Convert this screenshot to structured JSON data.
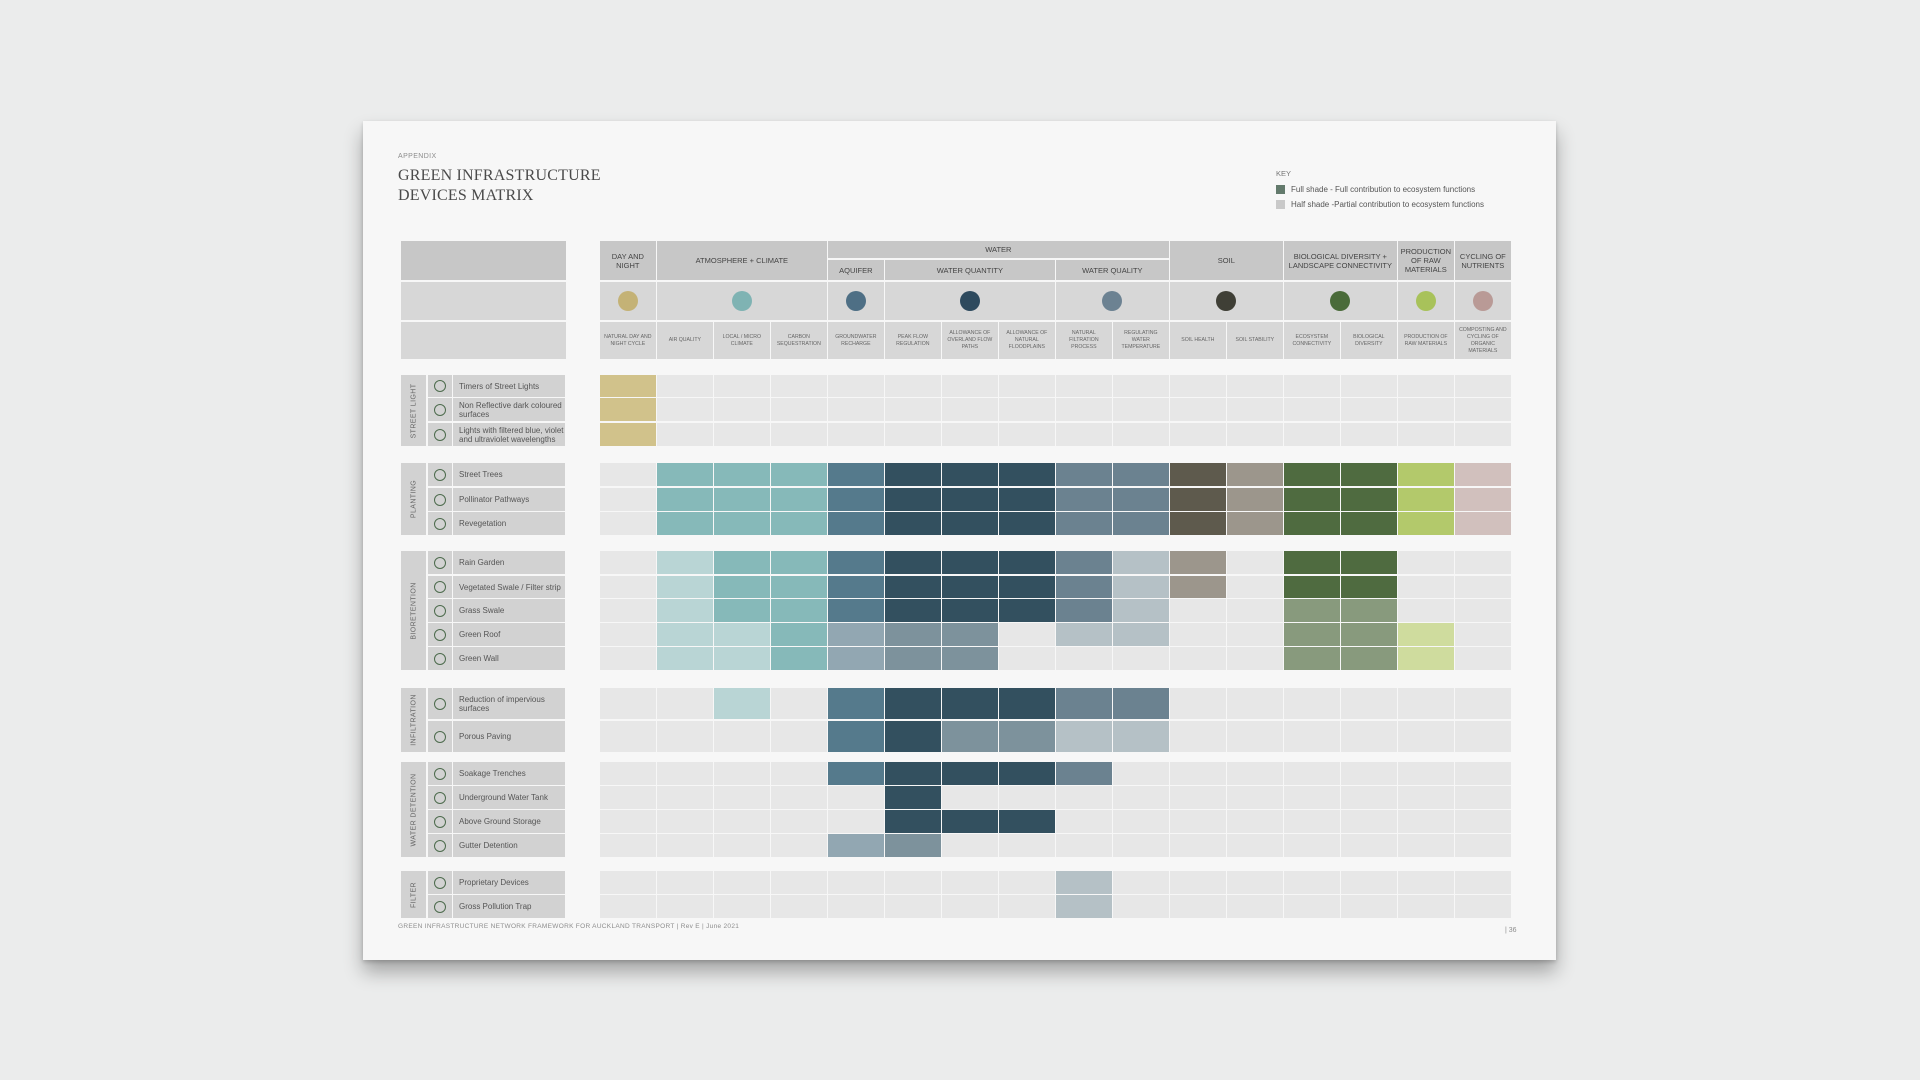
{
  "header": {
    "appendix": "APPENDIX",
    "title_line1": "GREEN INFRASTRUCTURE",
    "title_line2": "DEVICES  MATRIX"
  },
  "key": {
    "title": "KEY",
    "full_label": "Full shade - Full contribution to ecosystem functions",
    "half_label": "Half shade -Partial contribution to ecosystem functions",
    "full_color": "#637a6c",
    "half_color": "#c9c9c9"
  },
  "footer": {
    "text": "GREEN INFRASTRUCTURE NETWORK FRAMEWORK FOR AUCKLAND TRANSPORT  |  Rev E  |  June 2021",
    "page": "| 36"
  },
  "columns": {
    "groups": [
      {
        "label": "DAY AND NIGHT",
        "span": [
          0,
          0
        ],
        "icon": "sun-moon-icon",
        "icon_color": "#c4b276"
      },
      {
        "label": "ATMOSPHERE + CLIMATE",
        "span": [
          1,
          3
        ],
        "icon": "cloud-icon",
        "icon_color": "#7fb3b3"
      },
      {
        "label": "WATER",
        "span": [
          4,
          9
        ]
      },
      {
        "label": "SOIL",
        "span": [
          10,
          11
        ],
        "icon": "soil-icon",
        "icon_color": "#3f3f36"
      },
      {
        "label": "BIOLOGICAL DIVERSITY + LANDSCAPE CONNECTIVITY",
        "span": [
          12,
          13
        ],
        "icon": "tree-icon",
        "icon_color": "#4a6b3a"
      },
      {
        "label": "PRODUCTION OF RAW MATERIALS",
        "span": [
          14,
          14
        ],
        "icon": "leaf-icon",
        "icon_color": "#a8c25a"
      },
      {
        "label": "CYCLING OF NUTRIENTS",
        "span": [
          15,
          15
        ],
        "icon": "nutrient-icon",
        "icon_color": "#b99a96"
      }
    ],
    "water_subgroups": [
      {
        "label": "AQUIFER",
        "span": [
          4,
          4
        ],
        "icon": "aquifer-icon",
        "icon_color": "#4e6f85"
      },
      {
        "label": "WATER QUANTITY",
        "span": [
          5,
          7
        ],
        "icon": "drops-icon",
        "icon_color": "#2e4a5e"
      },
      {
        "label": "WATER QUALITY",
        "span": [
          8,
          9
        ],
        "icon": "drop-icon",
        "icon_color": "#6c8292"
      }
    ],
    "sub": [
      "NATURAL DAY AND NIGHT CYCLE",
      "AIR QUALITY",
      "LOCAL / MICRO CLIMATE",
      "CARBON SEQUESTRATION",
      "GROUNDWATER RECHARGE",
      "PEAK FLOW REGULATION",
      "ALLOWANCE OF OVERLAND FLOW PATHS",
      "ALLOWANCE OF NATURAL FLOODPLAINS",
      "NATURAL FILTRATION PROCESS",
      "REGULATING WATER TEMPERATURE",
      "SOIL HEALTH",
      "SOIL STABILITY",
      "ECOSYSTEM CONNECTIVITY",
      "BIOLOGICAL DIVERSITY",
      "PRODUCTION OF RAW MATERIALS",
      "COMPOSTING AND CYCLING OF ORGANIC MATERIALS"
    ]
  },
  "palette": {
    "0": "#e7e7e7",
    "dn": "#d1c28b",
    "at": "#86b9b9",
    "atl": "#b9d5d5",
    "aq": "#557a8c",
    "aql": "#92a7b2",
    "wq": "#33505f",
    "wql": "#7d929c",
    "fq": "#6b8290",
    "fql": "#b5c1c6",
    "sh": "#5e5a4d",
    "sl": "#9c968c",
    "bd": "#4f6b40",
    "bdl": "#889a7d",
    "pr": "#b3c96b",
    "prl": "#cfdc9e",
    "cy": "#d1c0bd"
  },
  "groups": [
    {
      "label": "STREET LIGHT",
      "rows": [
        {
          "label": "Timers of Street Lights",
          "cells": [
            "dn",
            "0",
            "0",
            "0",
            "0",
            "0",
            "0",
            "0",
            "0",
            "0",
            "0",
            "0",
            "0",
            "0",
            "0",
            "0"
          ]
        },
        {
          "label": "Non Reflective dark coloured surfaces",
          "cells": [
            "dn",
            "0",
            "0",
            "0",
            "0",
            "0",
            "0",
            "0",
            "0",
            "0",
            "0",
            "0",
            "0",
            "0",
            "0",
            "0"
          ]
        },
        {
          "label": "Lights with filtered blue, violet and ultraviolet wavelengths",
          "cells": [
            "dn",
            "0",
            "0",
            "0",
            "0",
            "0",
            "0",
            "0",
            "0",
            "0",
            "0",
            "0",
            "0",
            "0",
            "0",
            "0"
          ]
        }
      ]
    },
    {
      "label": "PLANTING",
      "rows": [
        {
          "label": "Street Trees",
          "cells": [
            "0",
            "at",
            "at",
            "at",
            "aq",
            "wq",
            "wq",
            "wq",
            "fq",
            "fq",
            "sh",
            "sl",
            "bd",
            "bd",
            "pr",
            "cy"
          ]
        },
        {
          "label": "Pollinator Pathways",
          "cells": [
            "0",
            "at",
            "at",
            "at",
            "aq",
            "wq",
            "wq",
            "wq",
            "fq",
            "fq",
            "sh",
            "sl",
            "bd",
            "bd",
            "pr",
            "cy"
          ]
        },
        {
          "label": "Revegetation",
          "cells": [
            "0",
            "at",
            "at",
            "at",
            "aq",
            "wq",
            "wq",
            "wq",
            "fq",
            "fq",
            "sh",
            "sl",
            "bd",
            "bd",
            "pr",
            "cy"
          ]
        }
      ]
    },
    {
      "label": "BIORETENTION",
      "rows": [
        {
          "label": "Rain Garden",
          "cells": [
            "0",
            "atl",
            "at",
            "at",
            "aq",
            "wq",
            "wq",
            "wq",
            "fq",
            "fql",
            "sl",
            "0",
            "bd",
            "bd",
            "0",
            "0"
          ]
        },
        {
          "label": "Vegetated Swale / Filter strip",
          "cells": [
            "0",
            "atl",
            "at",
            "at",
            "aq",
            "wq",
            "wq",
            "wq",
            "fq",
            "fql",
            "sl",
            "0",
            "bd",
            "bd",
            "0",
            "0"
          ]
        },
        {
          "label": "Grass Swale",
          "cells": [
            "0",
            "atl",
            "at",
            "at",
            "aq",
            "wq",
            "wq",
            "wq",
            "fq",
            "fql",
            "0",
            "0",
            "bdl",
            "bdl",
            "0",
            "0"
          ]
        },
        {
          "label": "Green Roof",
          "cells": [
            "0",
            "atl",
            "atl",
            "at",
            "aql",
            "wql",
            "wql",
            "0",
            "fql",
            "fql",
            "0",
            "0",
            "bdl",
            "bdl",
            "prl",
            "0"
          ]
        },
        {
          "label": "Green Wall",
          "cells": [
            "0",
            "atl",
            "atl",
            "at",
            "aql",
            "wql",
            "wql",
            "0",
            "0",
            "0",
            "0",
            "0",
            "bdl",
            "bdl",
            "prl",
            "0"
          ]
        }
      ]
    },
    {
      "label": "INFILTRATION",
      "rows": [
        {
          "label": "Reduction of impervious surfaces",
          "cells": [
            "0",
            "0",
            "atl",
            "0",
            "aq",
            "wq",
            "wq",
            "wq",
            "fq",
            "fq",
            "0",
            "0",
            "0",
            "0",
            "0",
            "0"
          ]
        },
        {
          "label": "Porous Paving",
          "cells": [
            "0",
            "0",
            "0",
            "0",
            "aq",
            "wq",
            "wql",
            "wql",
            "fql",
            "fql",
            "0",
            "0",
            "0",
            "0",
            "0",
            "0"
          ]
        }
      ]
    },
    {
      "label": "WATER DETENTION",
      "rows": [
        {
          "label": "Soakage Trenches",
          "cells": [
            "0",
            "0",
            "0",
            "0",
            "aq",
            "wq",
            "wq",
            "wq",
            "fq",
            "0",
            "0",
            "0",
            "0",
            "0",
            "0",
            "0"
          ]
        },
        {
          "label": "Underground Water Tank",
          "cells": [
            "0",
            "0",
            "0",
            "0",
            "0",
            "wq",
            "0",
            "0",
            "0",
            "0",
            "0",
            "0",
            "0",
            "0",
            "0",
            "0"
          ]
        },
        {
          "label": "Above Ground Storage",
          "cells": [
            "0",
            "0",
            "0",
            "0",
            "0",
            "wq",
            "wq",
            "wq",
            "0",
            "0",
            "0",
            "0",
            "0",
            "0",
            "0",
            "0"
          ]
        },
        {
          "label": "Gutter Detention",
          "cells": [
            "0",
            "0",
            "0",
            "0",
            "aql",
            "wql",
            "0",
            "0",
            "0",
            "0",
            "0",
            "0",
            "0",
            "0",
            "0",
            "0"
          ]
        }
      ]
    },
    {
      "label": "FILTER",
      "rows": [
        {
          "label": "Proprietary Devices",
          "cells": [
            "0",
            "0",
            "0",
            "0",
            "0",
            "0",
            "0",
            "0",
            "fql",
            "0",
            "0",
            "0",
            "0",
            "0",
            "0",
            "0"
          ]
        },
        {
          "label": "Gross Pollution Trap",
          "cells": [
            "0",
            "0",
            "0",
            "0",
            "0",
            "0",
            "0",
            "0",
            "fql",
            "0",
            "0",
            "0",
            "0",
            "0",
            "0",
            "0"
          ]
        }
      ]
    }
  ]
}
